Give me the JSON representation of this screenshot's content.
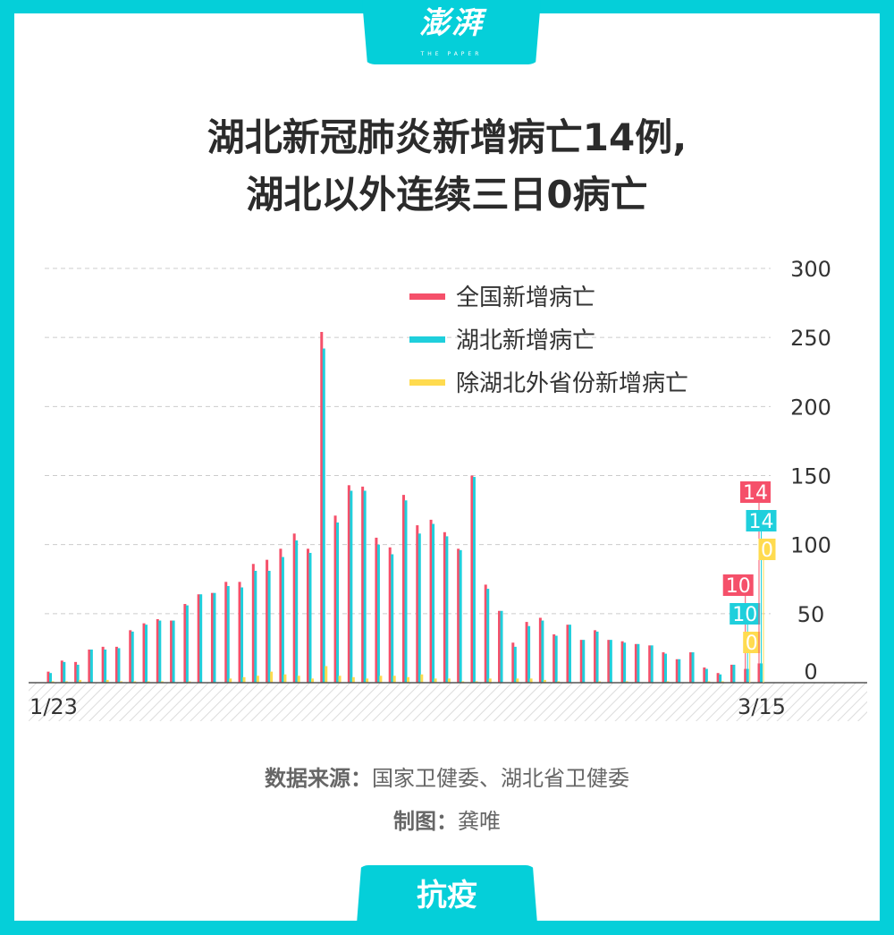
{
  "brand": {
    "logo": "澎湃",
    "logo_sub": "THE PAPER"
  },
  "title_lines": [
    "湖北新冠肺炎新增病亡14例,",
    "湖北以外连续三日0病亡"
  ],
  "source": {
    "label": "数据来源：",
    "text": "国家卫健委、湖北省卫健委"
  },
  "credit": {
    "label": "制图：",
    "text": "龚唯"
  },
  "footer_tab": "抗疫",
  "colors": {
    "frame": "#05cfd9",
    "national": "#f5506a",
    "hubei": "#1fcfdc",
    "others": "#ffdb4f"
  },
  "chart_data": {
    "type": "bar",
    "x_start_label": "1/23",
    "x_end_label": "3/15",
    "ylim": [
      0,
      300
    ],
    "yticks": [
      0,
      50,
      100,
      150,
      200,
      250,
      300
    ],
    "grid": true,
    "y_axis_position": "right",
    "legend_placement": "top-right",
    "categories": [
      "1/23",
      "1/24",
      "1/25",
      "1/26",
      "1/27",
      "1/28",
      "1/29",
      "1/30",
      "1/31",
      "2/1",
      "2/2",
      "2/3",
      "2/4",
      "2/5",
      "2/6",
      "2/7",
      "2/8",
      "2/9",
      "2/10",
      "2/11",
      "2/12",
      "2/13",
      "2/14",
      "2/15",
      "2/16",
      "2/17",
      "2/18",
      "2/19",
      "2/20",
      "2/21",
      "2/22",
      "2/23",
      "2/24",
      "2/25",
      "2/26",
      "2/27",
      "2/28",
      "2/29",
      "3/1",
      "3/2",
      "3/3",
      "3/4",
      "3/5",
      "3/6",
      "3/7",
      "3/8",
      "3/9",
      "3/10",
      "3/11",
      "3/12",
      "3/13",
      "3/14",
      "3/15"
    ],
    "series": [
      {
        "name": "全国新增病亡",
        "values": [
          8,
          16,
          15,
          24,
          26,
          26,
          38,
          43,
          46,
          45,
          57,
          64,
          65,
          73,
          73,
          86,
          89,
          97,
          108,
          97,
          254,
          121,
          143,
          142,
          105,
          98,
          136,
          114,
          118,
          109,
          97,
          150,
          71,
          52,
          29,
          44,
          47,
          35,
          42,
          31,
          38,
          31,
          30,
          28,
          27,
          22,
          17,
          22,
          11,
          7,
          13,
          10,
          14
        ]
      },
      {
        "name": "湖北新增病亡",
        "values": [
          7,
          15,
          13,
          24,
          24,
          25,
          37,
          42,
          45,
          45,
          56,
          64,
          65,
          70,
          69,
          81,
          81,
          91,
          103,
          94,
          242,
          116,
          139,
          139,
          100,
          93,
          132,
          108,
          115,
          106,
          96,
          149,
          68,
          52,
          26,
          41,
          45,
          34,
          42,
          31,
          37,
          31,
          29,
          28,
          27,
          21,
          17,
          22,
          10,
          6,
          13,
          10,
          14
        ]
      },
      {
        "name": "除湖北外省份新增病亡",
        "values": [
          1,
          1,
          2,
          0,
          2,
          1,
          1,
          1,
          1,
          0,
          1,
          0,
          0,
          3,
          4,
          5,
          8,
          6,
          5,
          3,
          12,
          5,
          4,
          3,
          5,
          5,
          4,
          6,
          3,
          3,
          1,
          1,
          3,
          0,
          3,
          3,
          2,
          1,
          0,
          0,
          1,
          0,
          1,
          0,
          0,
          1,
          0,
          0,
          1,
          1,
          0,
          0,
          0
        ]
      }
    ],
    "data_labels": [
      {
        "date": "3/14",
        "national": "10",
        "hubei": "10",
        "others": "0"
      },
      {
        "date": "3/15",
        "national": "14",
        "hubei": "14",
        "others": "0"
      }
    ]
  }
}
